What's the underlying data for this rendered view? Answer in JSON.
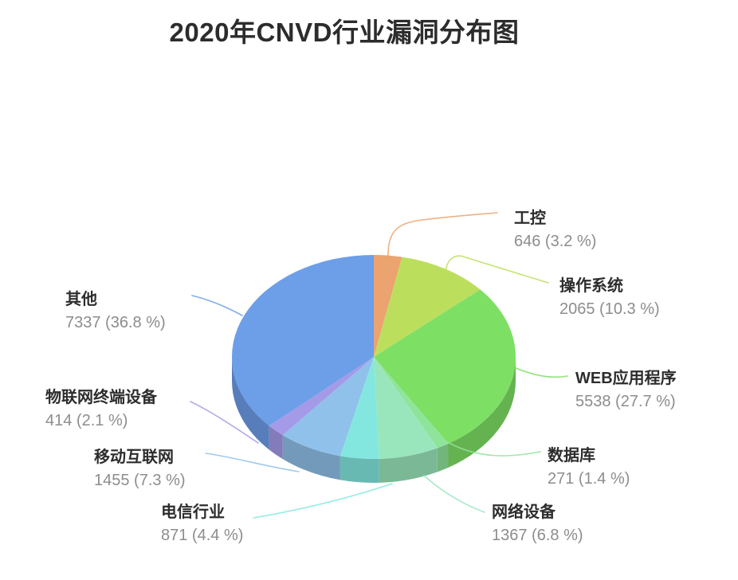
{
  "title": "2020年CNVD行业漏洞分布图",
  "chart_data": {
    "type": "pie",
    "style": "3d",
    "title": "2020年CNVD行业漏洞分布图",
    "direction": "clockwise",
    "start_angle_deg": 0,
    "label_format": "value (pct %)",
    "slices": [
      {
        "name": "工控",
        "value": 646,
        "pct": 3.2,
        "value_text": "646 (3.2 %)",
        "color": "#eba36f"
      },
      {
        "name": "操作系统",
        "value": 2065,
        "pct": 10.3,
        "value_text": "2065 (10.3 %)",
        "color": "#bbdf5d"
      },
      {
        "name": "WEB应用程序",
        "value": 5538,
        "pct": 27.7,
        "value_text": "5538 (27.7 %)",
        "color": "#7edf65"
      },
      {
        "name": "数据库",
        "value": 271,
        "pct": 1.4,
        "value_text": "271 (1.4 %)",
        "color": "#8ee49b"
      },
      {
        "name": "网络设备",
        "value": 1367,
        "pct": 6.8,
        "value_text": "1367 (6.8 %)",
        "color": "#9ae6bc"
      },
      {
        "name": "电信行业",
        "value": 871,
        "pct": 4.4,
        "value_text": "871 (4.4 %)",
        "color": "#83e7e0"
      },
      {
        "name": "移动互联网",
        "value": 1455,
        "pct": 7.3,
        "value_text": "1455 (7.3 %)",
        "color": "#90c1ea"
      },
      {
        "name": "物联网终端设备",
        "value": 414,
        "pct": 2.1,
        "value_text": "414 (2.1 %)",
        "color": "#a49ae8"
      },
      {
        "name": "其他",
        "value": 7337,
        "pct": 36.8,
        "value_text": "7337 (36.8 %)",
        "color": "#6d9ee8"
      }
    ],
    "text_colors": {
      "name": "#2d2d2d",
      "value": "#8d8d8d",
      "title": "#2c2c2c"
    }
  }
}
